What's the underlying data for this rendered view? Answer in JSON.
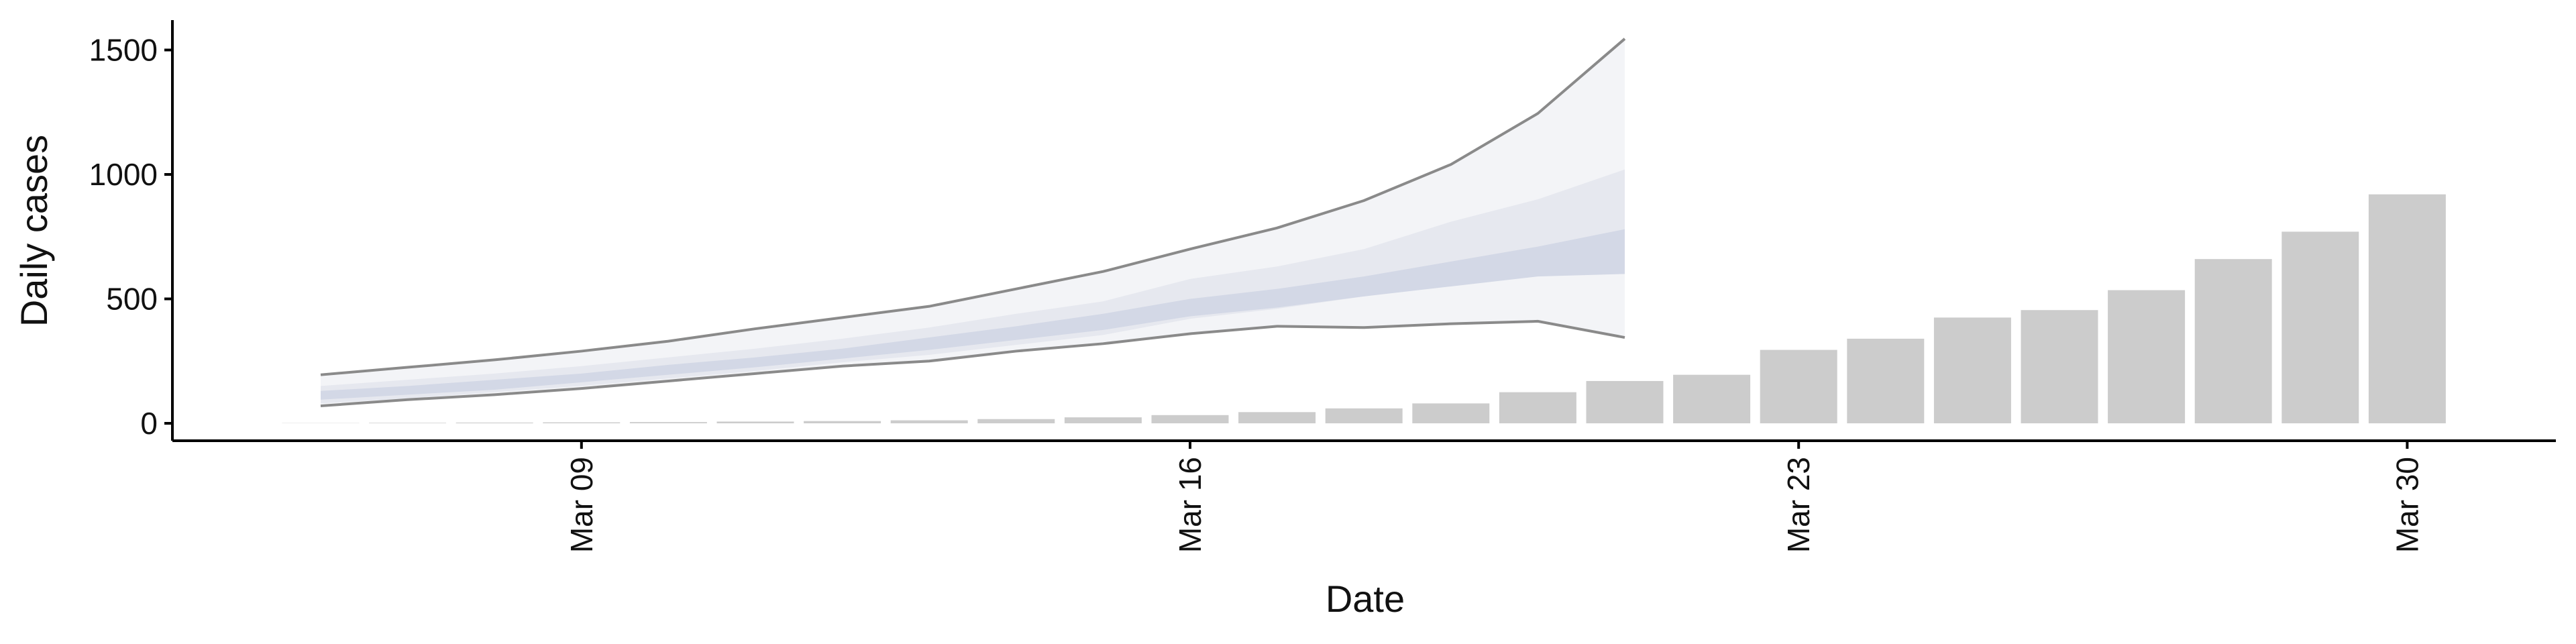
{
  "chart_data": {
    "type": "bar",
    "x_label": "Date",
    "y_label": "Daily cases",
    "categories": [
      "Mar 06",
      "Mar 07",
      "Mar 08",
      "Mar 09",
      "Mar 10",
      "Mar 11",
      "Mar 12",
      "Mar 13",
      "Mar 14",
      "Mar 15",
      "Mar 16",
      "Mar 17",
      "Mar 18",
      "Mar 19",
      "Mar 20",
      "Mar 21",
      "Mar 22",
      "Mar 23",
      "Mar 24",
      "Mar 25",
      "Mar 26",
      "Mar 27",
      "Mar 28",
      "Mar 29",
      "Mar 30"
    ],
    "values": [
      1,
      2,
      3,
      4,
      5,
      7,
      9,
      12,
      17,
      24,
      33,
      45,
      60,
      80,
      125,
      170,
      195,
      295,
      340,
      425,
      455,
      535,
      660,
      770,
      920
    ],
    "color": "#cccccc",
    "forecast": {
      "x": [
        "Mar 06",
        "Mar 07",
        "Mar 08",
        "Mar 09",
        "Mar 10",
        "Mar 11",
        "Mar 12",
        "Mar 13",
        "Mar 14",
        "Mar 15",
        "Mar 16",
        "Mar 17",
        "Mar 18",
        "Mar 19",
        "Mar 20",
        "Mar 21"
      ],
      "outer": {
        "color": "#f3f4f7",
        "line_color": "#8a8a8a",
        "upper": [
          195,
          225,
          255,
          290,
          330,
          380,
          425,
          470,
          540,
          610,
          700,
          785,
          895,
          1040,
          1245,
          1545
        ],
        "lower": [
          70,
          95,
          115,
          140,
          170,
          200,
          230,
          250,
          290,
          320,
          360,
          390,
          385,
          400,
          410,
          345
        ]
      },
      "mid": {
        "color": "#e6e8ef",
        "upper": [
          150,
          175,
          200,
          230,
          265,
          300,
          340,
          385,
          440,
          490,
          580,
          630,
          700,
          810,
          900,
          1020
        ],
        "lower": [
          80,
          100,
          125,
          150,
          180,
          210,
          245,
          275,
          315,
          355,
          420,
          460,
          510,
          560,
          600,
          600
        ]
      },
      "inner": {
        "color": "#d3d8e6",
        "upper": [
          130,
          150,
          175,
          200,
          235,
          265,
          300,
          345,
          390,
          440,
          500,
          540,
          590,
          650,
          710,
          780
        ],
        "lower": [
          95,
          115,
          135,
          165,
          195,
          225,
          260,
          295,
          335,
          375,
          430,
          465,
          510,
          550,
          590,
          600
        ]
      }
    },
    "ylim": [
      -70,
      1620
    ],
    "yticks": [
      0,
      500,
      1000,
      1500
    ],
    "xticks": [
      "Mar 09",
      "Mar 16",
      "Mar 23",
      "Mar 30"
    ]
  }
}
